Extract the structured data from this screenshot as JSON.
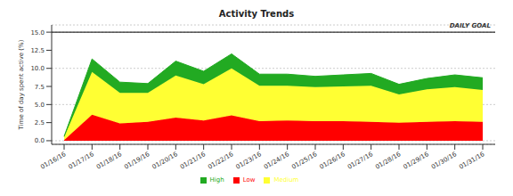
{
  "chart_data": {
    "type": "area",
    "title": "Activity Trends",
    "y_label": "Time of day spent active (%)",
    "stacked": true,
    "grid": true,
    "legend": "bottom",
    "categories": [
      "01/16/16",
      "01/17/16",
      "01/18/16",
      "01/19/16",
      "01/20/16",
      "01/21/16",
      "01/22/16",
      "01/23/16",
      "01/24/16",
      "01/25/16",
      "01/26/16",
      "01/27/16",
      "01/28/16",
      "01/29/16",
      "01/30/16",
      "01/31/16"
    ],
    "series": [
      {
        "name": "Low",
        "color": "#ff0000",
        "values": [
          0.1,
          3.6,
          2.4,
          2.6,
          3.2,
          2.8,
          3.5,
          2.7,
          2.8,
          2.7,
          2.7,
          2.6,
          2.5,
          2.6,
          2.7,
          2.6
        ]
      },
      {
        "name": "Medium",
        "color": "#ffff33",
        "values": [
          0.4,
          5.9,
          4.2,
          4.0,
          5.8,
          5.0,
          6.5,
          4.9,
          4.8,
          4.7,
          4.8,
          5.0,
          3.9,
          4.5,
          4.7,
          4.4
        ]
      },
      {
        "name": "High",
        "color": "#22aa22",
        "values": [
          0.1,
          1.8,
          1.5,
          1.3,
          2.0,
          1.8,
          2.0,
          1.6,
          1.6,
          1.5,
          1.6,
          1.7,
          1.4,
          1.5,
          1.7,
          1.7
        ]
      }
    ],
    "ylim": [
      -0.5,
      16
    ],
    "yticks": [
      {
        "value": 0,
        "label": "0.0"
      },
      2.5,
      {
        "value": 5,
        "label": "5.0"
      },
      7.5,
      {
        "value": 10,
        "label": "10.0"
      },
      12.5,
      {
        "value": 15,
        "label": "15.0"
      }
    ],
    "annotations": [
      {
        "y": 15,
        "text": "DAILY GOAL"
      }
    ]
  }
}
